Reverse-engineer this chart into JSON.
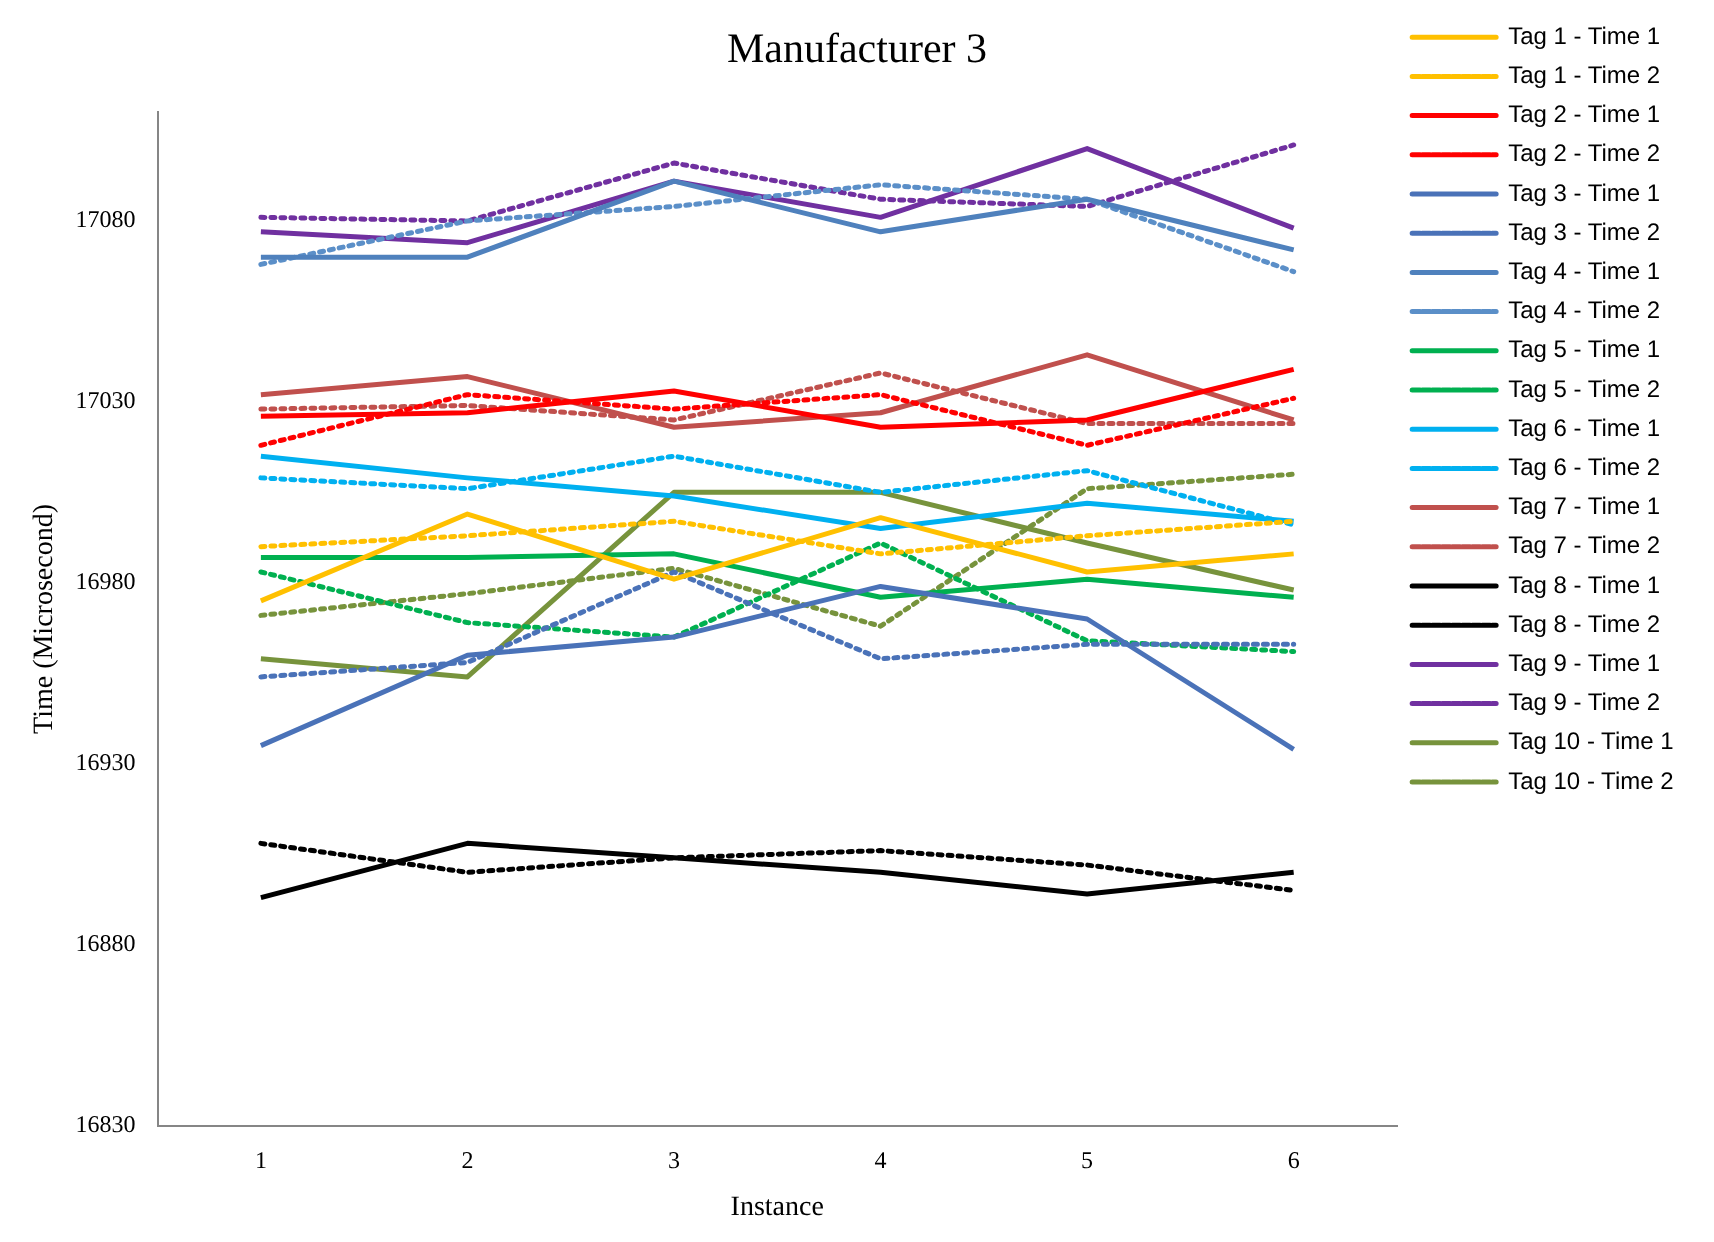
{
  "chart_data": {
    "type": "line",
    "title": "Manufacturer 3",
    "xlabel": "Instance",
    "ylabel": "Time (Microsecond)",
    "categories": [
      "1",
      "2",
      "3",
      "4",
      "5",
      "6"
    ],
    "ylim": [
      16830,
      17110
    ],
    "yticks": [
      16830,
      16880,
      16930,
      16980,
      17030,
      17080
    ],
    "grid": false,
    "legend": "right",
    "marker": "none",
    "series": [
      {
        "name": "Tag 1 - Time 1",
        "color": "#ffc000",
        "line_style": "solid",
        "values": [
          16975,
          16999,
          16981,
          16998,
          16983,
          16988
        ]
      },
      {
        "name": "Tag 1 - Time 2",
        "color": "#ffc000",
        "line_style": "dotted",
        "values": [
          16990,
          16993,
          16997,
          16988,
          16993,
          16997
        ]
      },
      {
        "name": "Tag 2 - Time 1",
        "color": "#ff0000",
        "line_style": "solid",
        "values": [
          17026,
          17027,
          17033,
          17023,
          17025,
          17039
        ]
      },
      {
        "name": "Tag 2 - Time 2",
        "color": "#ff0000",
        "line_style": "dotted",
        "values": [
          17018,
          17032,
          17028,
          17032,
          17018,
          17031
        ]
      },
      {
        "name": "Tag 3 - Time 1",
        "color": "#4a72b8",
        "line_style": "solid",
        "values": [
          16935,
          16960,
          16965,
          16979,
          16970,
          16934
        ]
      },
      {
        "name": "Tag 3 - Time 2",
        "color": "#4a72b8",
        "line_style": "dotted",
        "values": [
          16954,
          16958,
          16983,
          16959,
          16963,
          16963
        ]
      },
      {
        "name": "Tag 4 - Time 1",
        "color": "#4f81bd",
        "line_style": "solid",
        "values": [
          17070,
          17070,
          17091,
          17077,
          17086,
          17072
        ]
      },
      {
        "name": "Tag 4 - Time 2",
        "color": "#5b8fc8",
        "line_style": "dotted",
        "values": [
          17068,
          17080,
          17084,
          17090,
          17086,
          17066
        ]
      },
      {
        "name": "Tag 5 - Time 1",
        "color": "#00b050",
        "line_style": "solid",
        "values": [
          16987,
          16987,
          16988,
          16976,
          16981,
          16976
        ]
      },
      {
        "name": "Tag 5 - Time 2",
        "color": "#00b050",
        "line_style": "dotted",
        "values": [
          16983,
          16969,
          16965,
          16991,
          16964,
          16961
        ]
      },
      {
        "name": "Tag 6 - Time 1",
        "color": "#00b0f0",
        "line_style": "solid",
        "values": [
          17015,
          17009,
          17004,
          16995,
          17002,
          16997
        ]
      },
      {
        "name": "Tag 6 - Time 2",
        "color": "#00b0f0",
        "line_style": "dotted",
        "values": [
          17009,
          17006,
          17015,
          17005,
          17011,
          16996
        ]
      },
      {
        "name": "Tag 7 - Time 1",
        "color": "#c0504d",
        "line_style": "solid",
        "values": [
          17032,
          17037,
          17023,
          17027,
          17043,
          17025
        ]
      },
      {
        "name": "Tag 7 - Time 2",
        "color": "#c0504d",
        "line_style": "dotted",
        "values": [
          17028,
          17029,
          17025,
          17038,
          17024,
          17024
        ]
      },
      {
        "name": "Tag 8 - Time 1",
        "color": "#000000",
        "line_style": "solid",
        "values": [
          16893,
          16908,
          16904,
          16900,
          16894,
          16900
        ]
      },
      {
        "name": "Tag 8 - Time 2",
        "color": "#000000",
        "line_style": "dotted",
        "values": [
          16908,
          16900,
          16904,
          16906,
          16902,
          16895
        ]
      },
      {
        "name": "Tag 9 - Time 1",
        "color": "#7030a0",
        "line_style": "solid",
        "values": [
          17077,
          17074,
          17091,
          17081,
          17100,
          17078
        ]
      },
      {
        "name": "Tag 9 - Time 2",
        "color": "#7030a0",
        "line_style": "dotted",
        "values": [
          17081,
          17080,
          17096,
          17086,
          17084,
          17101
        ]
      },
      {
        "name": "Tag 10 - Time 1",
        "color": "#77933c",
        "line_style": "solid",
        "values": [
          16959,
          16954,
          17005,
          17005,
          16991,
          16978
        ]
      },
      {
        "name": "Tag 10 - Time 2",
        "color": "#77933c",
        "line_style": "dotted",
        "values": [
          16971,
          16977,
          16984,
          16968,
          17006,
          17010
        ]
      }
    ]
  }
}
